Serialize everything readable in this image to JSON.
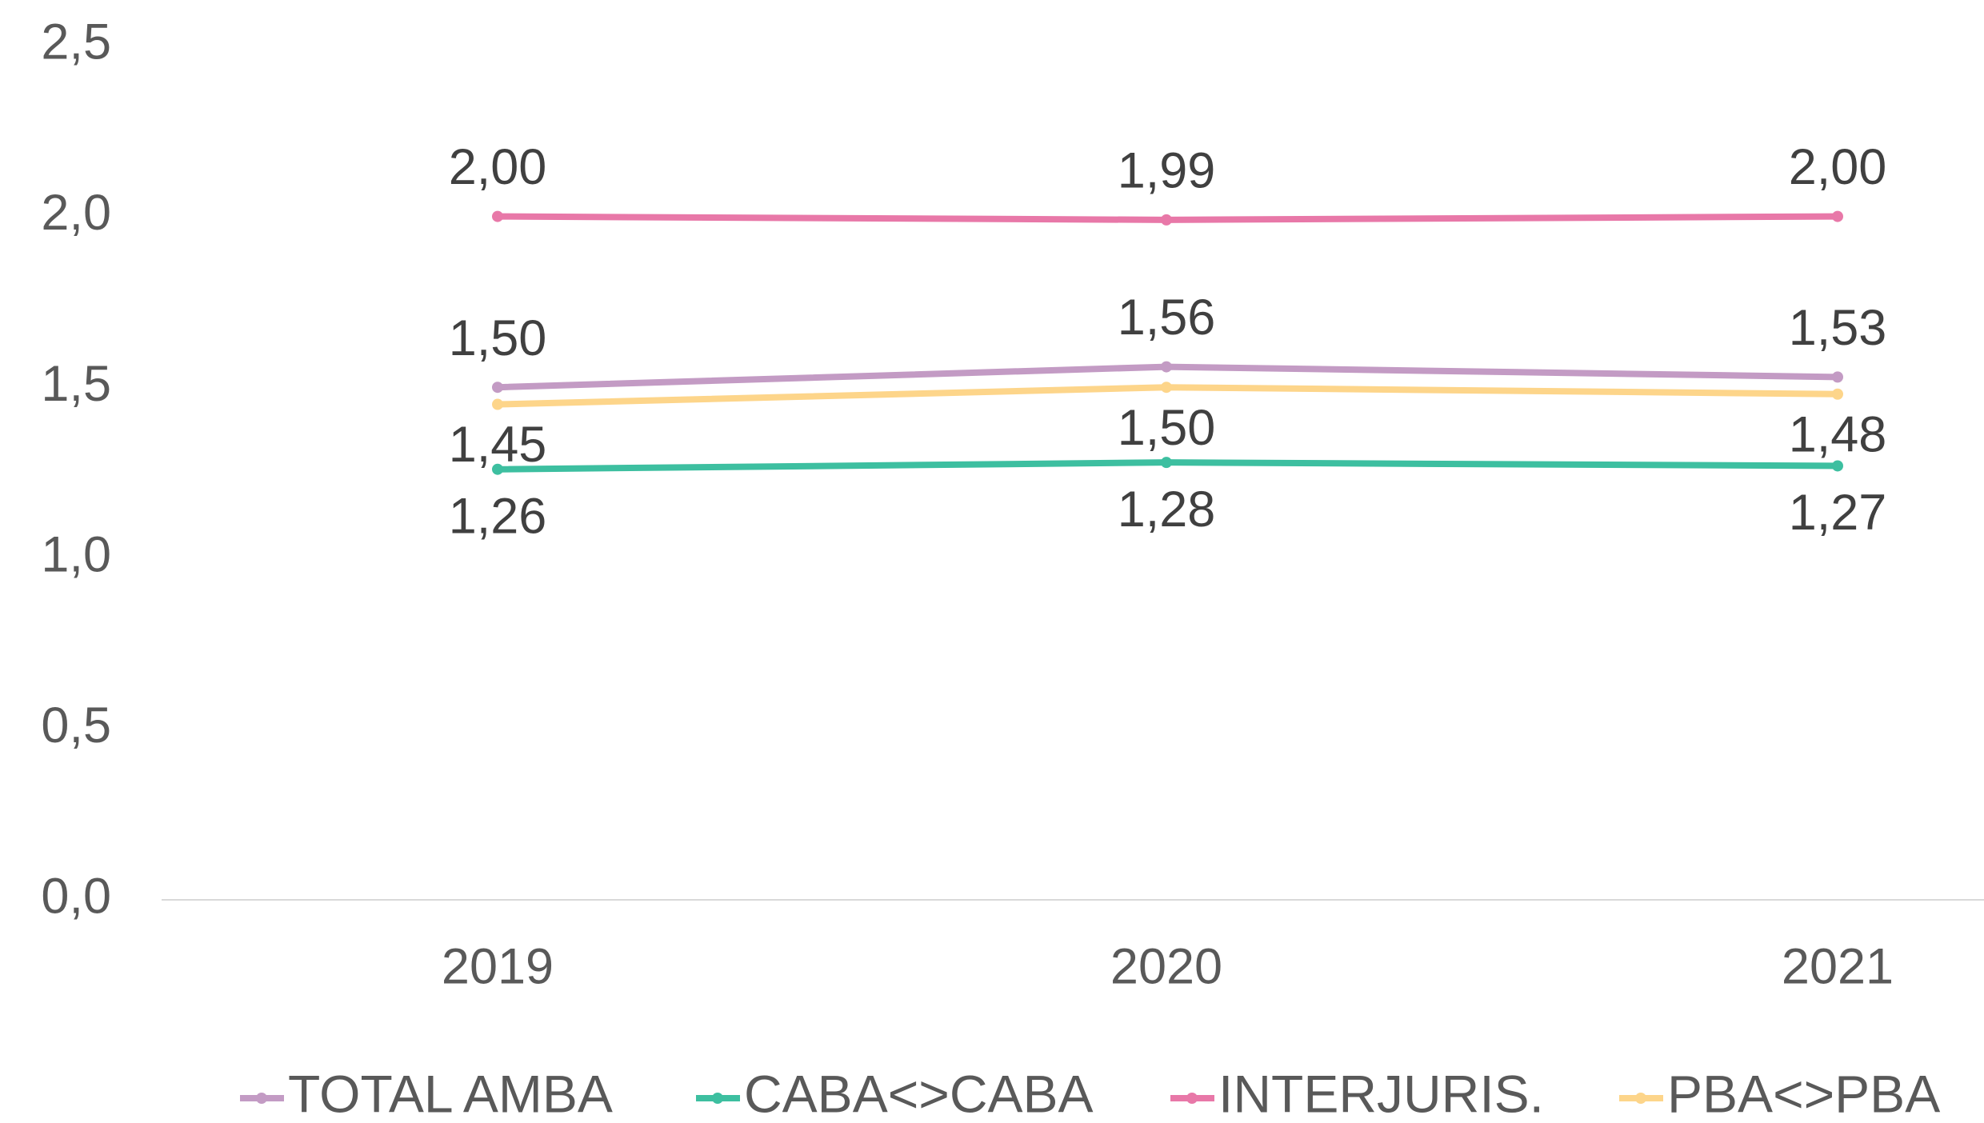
{
  "chart_data": {
    "type": "line",
    "categories": [
      "2019",
      "2020",
      "2021"
    ],
    "series": [
      {
        "name": "TOTAL AMBA",
        "color": "#c39bc4",
        "values": [
          1.5,
          1.56,
          1.53
        ],
        "value_labels": [
          "1,50",
          "1,56",
          "1,53"
        ]
      },
      {
        "name": "CABA<>CABA",
        "color": "#3dbfa0",
        "values": [
          1.26,
          1.28,
          1.27
        ],
        "value_labels": [
          "1,26",
          "1,28",
          "1,27"
        ]
      },
      {
        "name": "INTERJURIS.",
        "color": "#e878a8",
        "values": [
          2.0,
          1.99,
          2.0
        ],
        "value_labels": [
          "2,00",
          "1,99",
          "2,00"
        ]
      },
      {
        "name": "PBA<>PBA",
        "color": "#fdd58a",
        "values": [
          1.45,
          1.5,
          1.48
        ],
        "value_labels": [
          "1,45",
          "1,50",
          "1,48"
        ]
      }
    ],
    "ylim": [
      0,
      2.5
    ],
    "yticks": [
      {
        "value": 0,
        "label": "0,0"
      },
      {
        "value": 0.5,
        "label": "0,5"
      },
      {
        "value": 1,
        "label": "1,0"
      },
      {
        "value": 1.5,
        "label": "1,5"
      },
      {
        "value": 2,
        "label": "2,0"
      },
      {
        "value": 2.5,
        "label": "2,5"
      }
    ],
    "grid": false,
    "legend": "bottom"
  }
}
